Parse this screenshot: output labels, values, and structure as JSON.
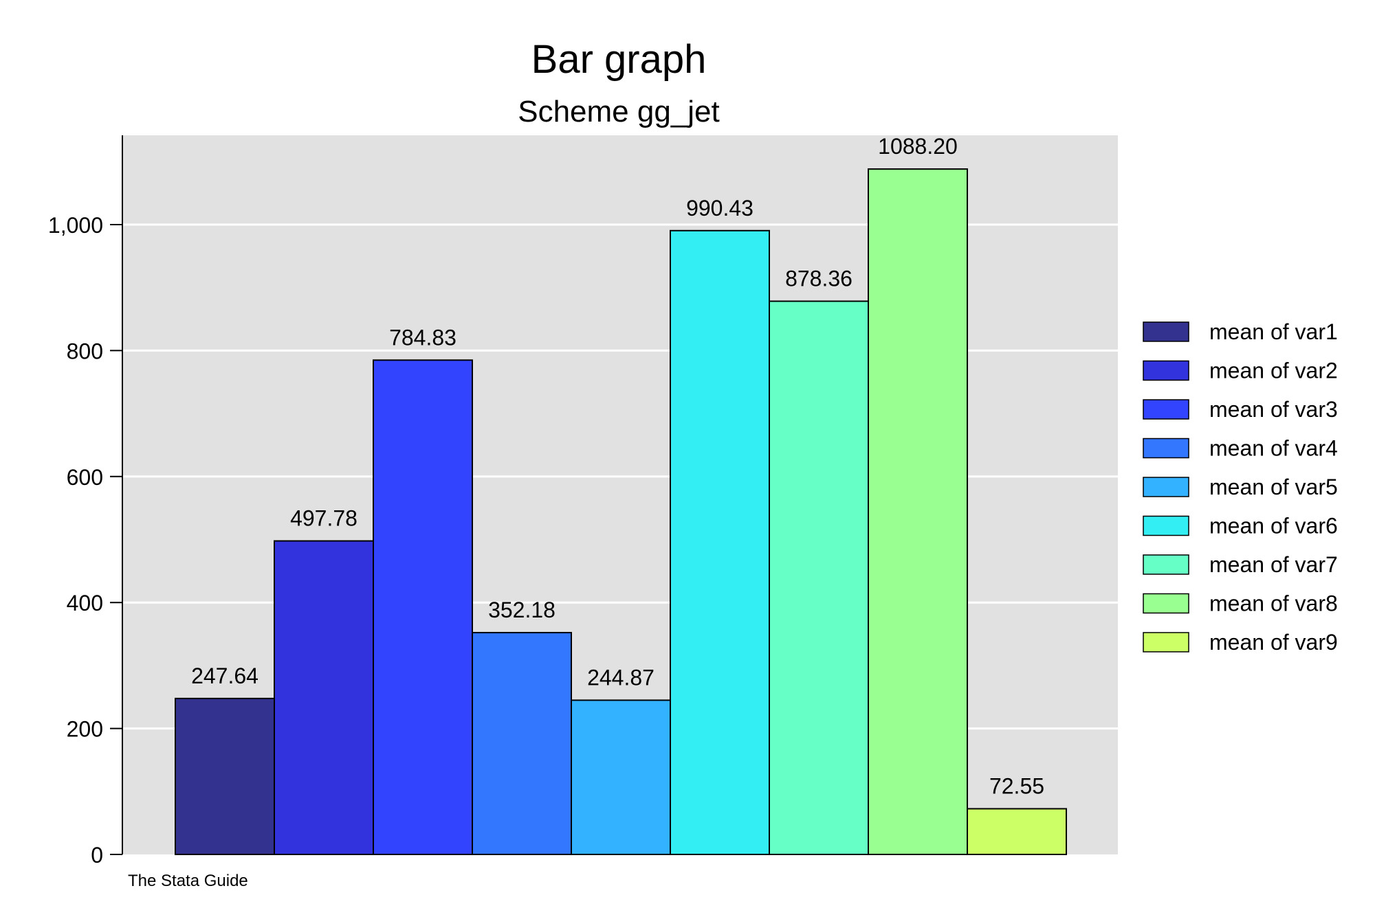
{
  "chart_data": {
    "type": "bar",
    "title": "Bar graph",
    "subtitle": "Scheme gg_jet",
    "note": "The Stata Guide",
    "ylim": [
      0,
      1140
    ],
    "yticks": [
      0,
      200,
      400,
      600,
      800,
      1000
    ],
    "ytick_labels": [
      "0",
      "200",
      "400",
      "600",
      "800",
      "1,000"
    ],
    "grid": true,
    "legend_position": "right",
    "background_color": "#e1e1e1",
    "series": [
      {
        "name": "mean of var1",
        "value": 247.64,
        "label": "247.64",
        "color": "#33338f"
      },
      {
        "name": "mean of var2",
        "value": 497.78,
        "label": "497.78",
        "color": "#3333dd"
      },
      {
        "name": "mean of var3",
        "value": 784.83,
        "label": "784.83",
        "color": "#3344ff"
      },
      {
        "name": "mean of var4",
        "value": 352.18,
        "label": "352.18",
        "color": "#3377ff"
      },
      {
        "name": "mean of var5",
        "value": 244.87,
        "label": "244.87",
        "color": "#33b3ff"
      },
      {
        "name": "mean of var6",
        "value": 990.43,
        "label": "990.43",
        "color": "#33eef3"
      },
      {
        "name": "mean of var7",
        "value": 878.36,
        "label": "878.36",
        "color": "#66ffc6"
      },
      {
        "name": "mean of var8",
        "value": 1088.2,
        "label": "1088.20",
        "color": "#99ff90"
      },
      {
        "name": "mean of var9",
        "value": 72.55,
        "label": "72.55",
        "color": "#ccff66"
      }
    ]
  }
}
